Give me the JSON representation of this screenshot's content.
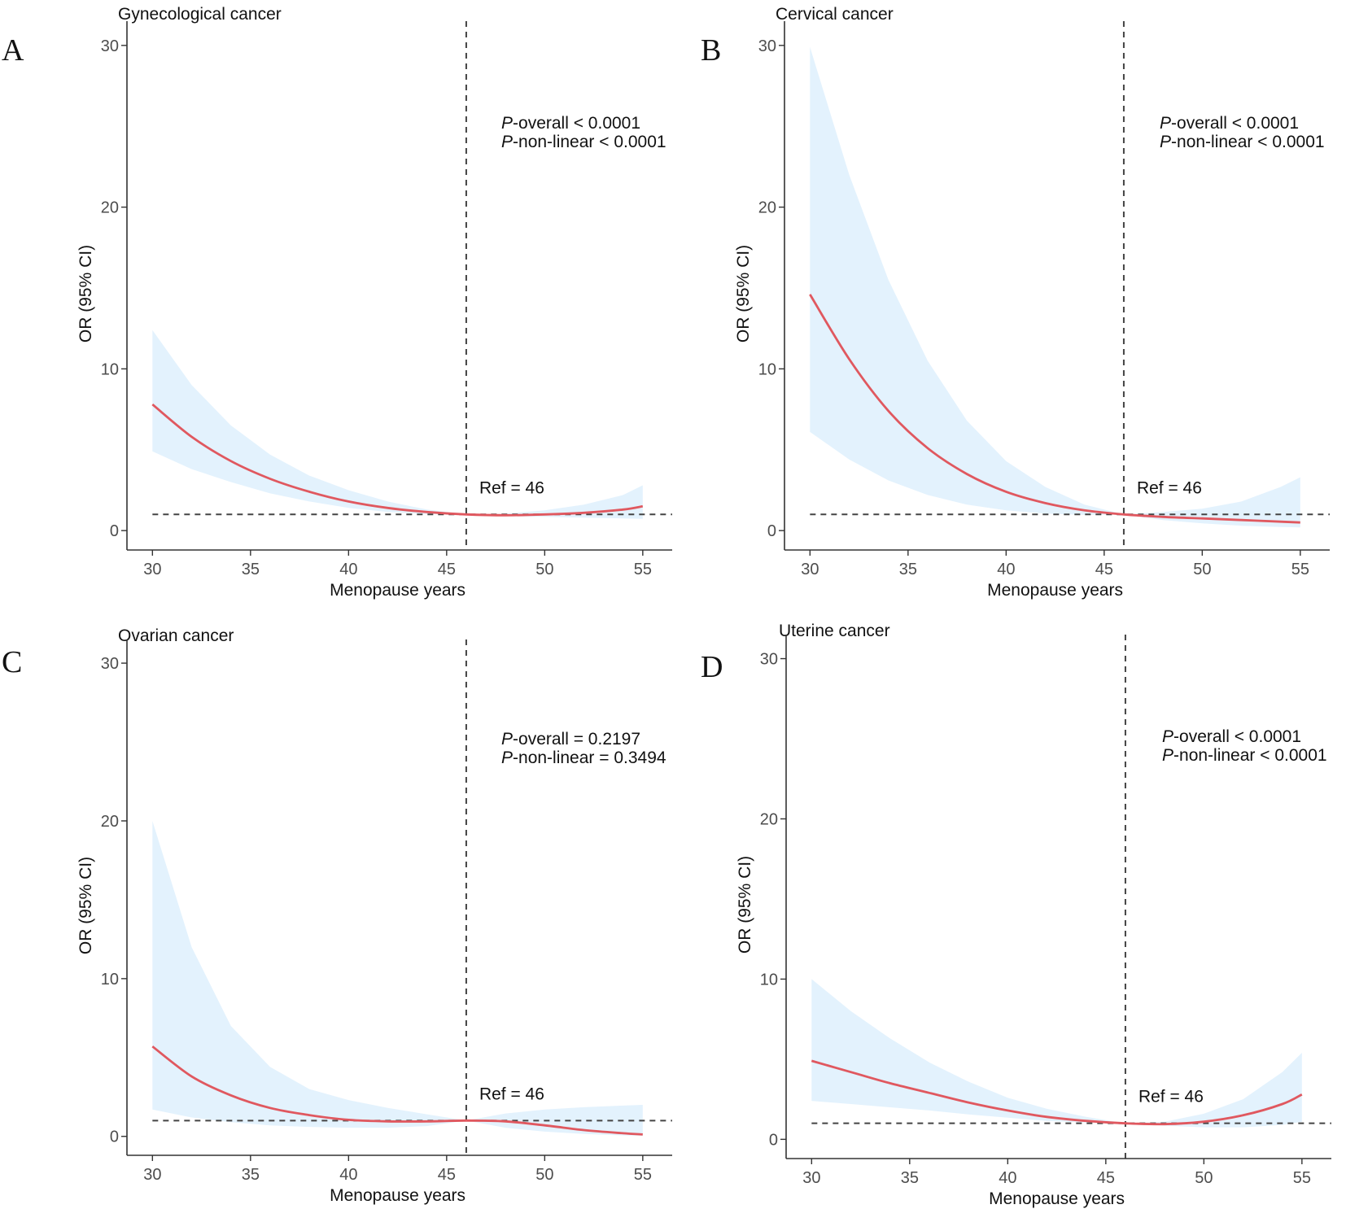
{
  "figure": {
    "colors": {
      "curve": "#e0585f",
      "band": "#e3f2fd",
      "axis": "#333333",
      "refline": "#444444"
    }
  },
  "chart_data": [
    {
      "type": "line",
      "panel_label": "A",
      "title": "Gynecological cancer",
      "xlabel": "Menopause years",
      "ylabel": "OR (95% CI)",
      "xlim": [
        28.7,
        56.5
      ],
      "ylim": [
        -1.2,
        31.5
      ],
      "xticks": [
        30,
        35,
        40,
        45,
        50,
        55
      ],
      "yticks": [
        0,
        10,
        20,
        30
      ],
      "reference": {
        "x": 46,
        "y": 1,
        "label": "Ref = 46"
      },
      "p_overall": "P-overall < 0.0001",
      "p_nonlinear": "P-non-linear < 0.0001",
      "x": [
        30,
        32,
        34,
        36,
        38,
        40,
        42,
        44,
        46,
        48,
        50,
        52,
        54,
        55
      ],
      "series": [
        {
          "name": "OR",
          "values": [
            7.8,
            5.8,
            4.3,
            3.2,
            2.4,
            1.8,
            1.4,
            1.15,
            1.0,
            0.95,
            1.0,
            1.1,
            1.3,
            1.5
          ]
        },
        {
          "name": "Lower 95% CI",
          "values": [
            4.9,
            3.8,
            3.0,
            2.3,
            1.8,
            1.4,
            1.15,
            1.02,
            1.0,
            0.9,
            0.85,
            0.8,
            0.75,
            0.72
          ]
        },
        {
          "name": "Upper 95% CI",
          "values": [
            12.4,
            9.0,
            6.5,
            4.7,
            3.4,
            2.5,
            1.8,
            1.3,
            1.0,
            1.05,
            1.25,
            1.6,
            2.2,
            2.8
          ]
        }
      ]
    },
    {
      "type": "line",
      "panel_label": "B",
      "title": "Cervical cancer",
      "xlabel": "Menopause years",
      "ylabel": "OR (95% CI)",
      "xlim": [
        28.7,
        56.5
      ],
      "ylim": [
        -1.2,
        31.5
      ],
      "xticks": [
        30,
        35,
        40,
        45,
        50,
        55
      ],
      "yticks": [
        0,
        10,
        20,
        30
      ],
      "reference": {
        "x": 46,
        "y": 1,
        "label": "Ref = 46"
      },
      "p_overall": "P-overall < 0.0001",
      "p_nonlinear": "P-non-linear < 0.0001",
      "x": [
        30,
        32,
        34,
        36,
        38,
        40,
        42,
        44,
        46,
        48,
        50,
        52,
        54,
        55
      ],
      "series": [
        {
          "name": "OR",
          "values": [
            14.6,
            10.6,
            7.4,
            5.1,
            3.5,
            2.4,
            1.7,
            1.25,
            1.0,
            0.85,
            0.75,
            0.65,
            0.55,
            0.5
          ]
        },
        {
          "name": "Lower 95% CI",
          "values": [
            6.1,
            4.4,
            3.1,
            2.2,
            1.6,
            1.25,
            1.05,
            0.97,
            1.0,
            0.65,
            0.45,
            0.3,
            0.22,
            0.2
          ]
        },
        {
          "name": "Upper 95% CI",
          "values": [
            29.9,
            22.0,
            15.5,
            10.5,
            6.8,
            4.3,
            2.7,
            1.6,
            1.0,
            1.15,
            1.35,
            1.8,
            2.7,
            3.3
          ]
        }
      ]
    },
    {
      "type": "line",
      "panel_label": "C",
      "title": "Ovarian cancer",
      "xlabel": "Menopause years",
      "ylabel": "OR (95% CI)",
      "xlim": [
        28.7,
        56.5
      ],
      "ylim": [
        -1.2,
        31.5
      ],
      "xticks": [
        30,
        35,
        40,
        45,
        50,
        55
      ],
      "yticks": [
        0,
        10,
        20,
        30
      ],
      "reference": {
        "x": 46,
        "y": 1,
        "label": "Ref = 46"
      },
      "p_overall": "P-overall = 0.2197",
      "p_nonlinear": "P-non-linear = 0.3494",
      "x": [
        30,
        32,
        34,
        36,
        38,
        40,
        42,
        44,
        46,
        48,
        50,
        52,
        54,
        55
      ],
      "series": [
        {
          "name": "OR",
          "values": [
            5.7,
            3.8,
            2.6,
            1.8,
            1.35,
            1.05,
            0.95,
            0.95,
            1.0,
            0.95,
            0.7,
            0.4,
            0.2,
            0.12
          ]
        },
        {
          "name": "Lower 95% CI",
          "values": [
            1.7,
            1.2,
            0.9,
            0.7,
            0.6,
            0.55,
            0.55,
            0.65,
            1.0,
            0.55,
            0.3,
            0.15,
            0.06,
            0.04
          ]
        },
        {
          "name": "Upper 95% CI",
          "values": [
            20.0,
            12.0,
            7.0,
            4.4,
            3.0,
            2.3,
            1.8,
            1.4,
            1.0,
            1.45,
            1.7,
            1.85,
            1.95,
            2.0
          ]
        }
      ]
    },
    {
      "type": "line",
      "panel_label": "D",
      "title": "Uterine cancer",
      "xlabel": "Menopause years",
      "ylabel": "OR (95% CI)",
      "xlim": [
        28.7,
        56.5
      ],
      "ylim": [
        -1.2,
        31.5
      ],
      "xticks": [
        30,
        35,
        40,
        45,
        50,
        55
      ],
      "yticks": [
        0,
        10,
        20,
        30
      ],
      "reference": {
        "x": 46,
        "y": 1,
        "label": "Ref = 46"
      },
      "p_overall": "P-overall < 0.0001",
      "p_nonlinear": "P-non-linear < 0.0001",
      "x": [
        30,
        32,
        34,
        36,
        38,
        40,
        42,
        44,
        46,
        48,
        50,
        52,
        54,
        55
      ],
      "series": [
        {
          "name": "OR",
          "values": [
            4.9,
            4.2,
            3.5,
            2.9,
            2.3,
            1.8,
            1.4,
            1.15,
            1.0,
            0.95,
            1.1,
            1.5,
            2.2,
            2.8
          ]
        },
        {
          "name": "Lower 95% CI",
          "values": [
            2.4,
            2.2,
            2.0,
            1.8,
            1.55,
            1.35,
            1.15,
            1.05,
            1.0,
            0.85,
            0.75,
            0.75,
            0.9,
            1.1
          ]
        },
        {
          "name": "Upper 95% CI",
          "values": [
            10.0,
            8.0,
            6.3,
            4.8,
            3.6,
            2.6,
            1.9,
            1.4,
            1.0,
            1.1,
            1.6,
            2.5,
            4.2,
            5.4
          ]
        }
      ]
    }
  ]
}
